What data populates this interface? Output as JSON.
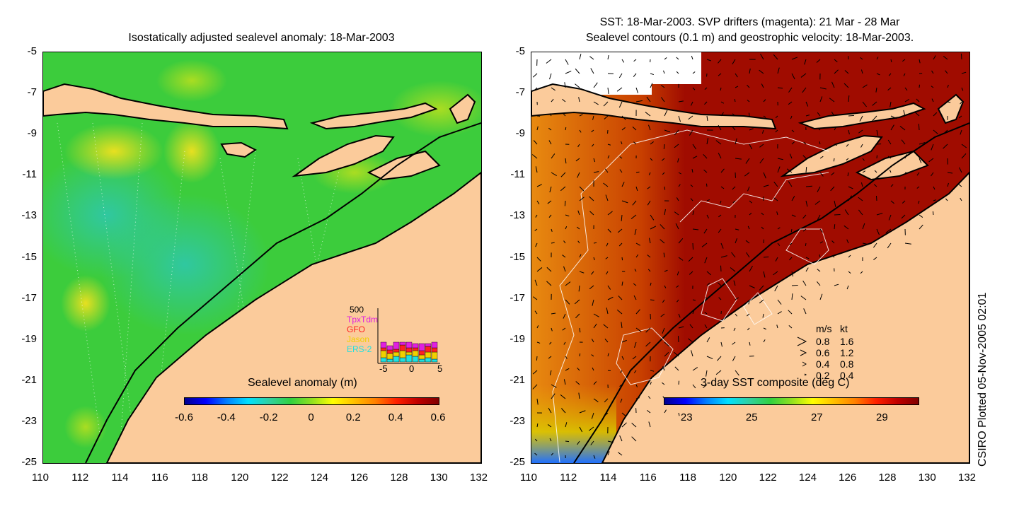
{
  "left_panel": {
    "title": "Isostatically adjusted sealevel anomaly: 18-Mar-2003",
    "colorbar": {
      "title": "Sealevel anomaly (m)",
      "ticks": [
        "-0.6",
        "-0.4",
        "-0.2",
        "0",
        "0.2",
        "0.4",
        "0.6"
      ],
      "range": [
        -0.6,
        0.6
      ]
    },
    "satellite_inset": {
      "ymax_label": "500",
      "missions": [
        {
          "name": "TpxTdm",
          "color": "#e020e0"
        },
        {
          "name": "GFO",
          "color": "#ff2020"
        },
        {
          "name": "Jason",
          "color": "#f0d000"
        },
        {
          "name": "ERS-2",
          "color": "#20e0e0"
        }
      ],
      "x_ticks": [
        "-5",
        "0",
        "5"
      ]
    }
  },
  "right_panel": {
    "title_line1": "SST: 18-Mar-2003. SVP drifters (magenta): 21 Mar - 28 Mar",
    "title_line2": "Sealevel contours (0.1 m) and geostrophic velocity: 18-Mar-2003.",
    "colorbar": {
      "title": "3-day SST composite (deg C)",
      "ticks": [
        "23",
        "25",
        "27",
        "29"
      ],
      "range": [
        22.3,
        30.1
      ]
    },
    "velocity_legend": {
      "header_ms": "m/s",
      "header_kt": "kt",
      "rows": [
        {
          "ms": "0.8",
          "kt": "1.6"
        },
        {
          "ms": "0.6",
          "kt": "1.2"
        },
        {
          "ms": "0.4",
          "kt": "0.8"
        },
        {
          "ms": "0.2",
          "kt": "0.4"
        }
      ]
    }
  },
  "axes": {
    "lat_labels": [
      "-5",
      "-7",
      "-9",
      "-11",
      "-13",
      "-15",
      "-17",
      "-19",
      "-21",
      "-23",
      "-25"
    ],
    "lon_labels": [
      "110",
      "112",
      "114",
      "116",
      "118",
      "120",
      "122",
      "124",
      "126",
      "128",
      "130",
      "132"
    ]
  },
  "credit": "CSIRO Plotted 05-Nov-2005 02:01",
  "colors": {
    "land": "#fbcb9b",
    "sea_anomaly_base": "#33cc33",
    "sst_warm": "#a00c00",
    "coast": "#000000"
  }
}
